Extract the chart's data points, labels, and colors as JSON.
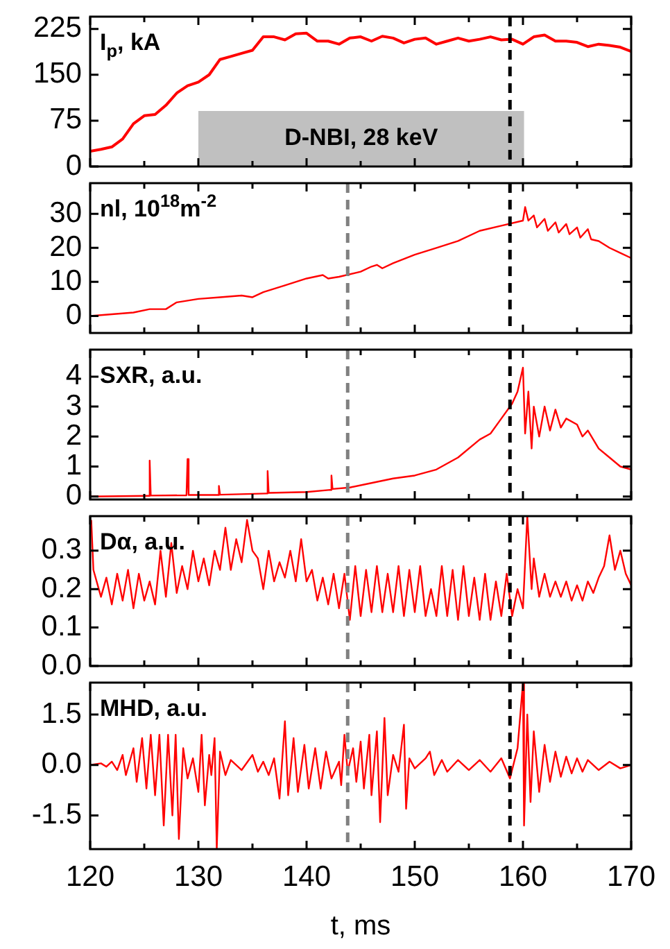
{
  "chart_data": [
    {
      "type": "line",
      "title": "I$_{p}$, kA",
      "xlim": [
        120,
        170
      ],
      "xticks": [
        120,
        {
          "value": 125,
          "label": null
        },
        130,
        {
          "value": 135,
          "label": null
        },
        140,
        {
          "value": 145,
          "label": null
        },
        150,
        {
          "value": 155,
          "label": null
        },
        160,
        {
          "value": 165,
          "label": null
        },
        170
      ],
      "ylim": [
        0,
        245
      ],
      "yticks": [
        0,
        75,
        150,
        225
      ],
      "tick_labels": "y",
      "series": [
        {
          "color": "#ff0000",
          "x": [
            120,
            121,
            122,
            123,
            124,
            125,
            126,
            127,
            128,
            129,
            130,
            131,
            132,
            133,
            134,
            135,
            136,
            137,
            138,
            139,
            140,
            141,
            142,
            143,
            144,
            145,
            146,
            147,
            148,
            149,
            150,
            151,
            152,
            153,
            154,
            155,
            156,
            157,
            158,
            159,
            160,
            161,
            162,
            163,
            164,
            165,
            166,
            167,
            168,
            169,
            170
          ],
          "values": [
            25,
            28,
            32,
            45,
            70,
            83,
            85,
            100,
            120,
            132,
            138,
            150,
            175,
            180,
            185,
            190,
            212,
            212,
            207,
            217,
            218,
            205,
            205,
            200,
            210,
            212,
            205,
            213,
            210,
            202,
            208,
            210,
            200,
            205,
            210,
            205,
            208,
            212,
            207,
            208,
            200,
            212,
            215,
            205,
            205,
            203,
            196,
            200,
            198,
            195,
            188
          ]
        }
      ],
      "ref_lines": [
        {
          "axis": "x",
          "value": 158.8,
          "color": "#000000",
          "line_style": "dashed"
        }
      ],
      "bands": [
        {
          "axis": "x",
          "from": 130,
          "to": 160.1,
          "label": "D-NBI, 28 keV",
          "color": "#c0c0c0"
        }
      ]
    },
    {
      "type": "line",
      "title": "nl, 10$^{18}$m$^{-2}$",
      "xlim": [
        120,
        170
      ],
      "xticks": [
        120,
        {
          "value": 125,
          "label": null
        },
        130,
        {
          "value": 135,
          "label": null
        },
        140,
        {
          "value": 145,
          "label": null
        },
        150,
        {
          "value": 155,
          "label": null
        },
        160,
        {
          "value": 165,
          "label": null
        },
        170
      ],
      "ylim": [
        -5,
        39
      ],
      "yticks": [
        0,
        10,
        20,
        30
      ],
      "tick_labels": "y",
      "series": [
        {
          "color": "#ff0000",
          "x": [
            120,
            122,
            124,
            125.5,
            127,
            128,
            130,
            132,
            134,
            135,
            136,
            138,
            140,
            141.5,
            142,
            143,
            145,
            146,
            146.5,
            147,
            148,
            150,
            152,
            154,
            156,
            158,
            160,
            160.2,
            160.5,
            161,
            161.3,
            162,
            162.3,
            163,
            163.3,
            164,
            164.3,
            165,
            165.3,
            166,
            166.3,
            167,
            168,
            169,
            170
          ],
          "values": [
            0,
            0.5,
            1,
            2,
            2,
            4,
            5,
            5.5,
            6,
            5.5,
            7,
            9,
            11,
            12,
            11,
            11.5,
            13,
            14.5,
            15,
            14,
            15.5,
            18,
            20,
            22,
            25,
            26.5,
            28,
            32,
            28,
            29.5,
            26,
            28.5,
            25,
            27.5,
            24.5,
            27,
            24,
            26,
            23,
            25.5,
            22.5,
            22,
            20,
            18.5,
            17
          ]
        }
      ],
      "ref_lines": [
        {
          "axis": "x",
          "value": 143.8,
          "color": "#808080",
          "line_style": "dashed"
        },
        {
          "axis": "x",
          "value": 158.8,
          "color": "#000000",
          "line_style": "dashed"
        }
      ]
    },
    {
      "type": "line",
      "title": "SXR, a.u.",
      "xlim": [
        120,
        170
      ],
      "xticks": [
        120,
        {
          "value": 125,
          "label": null
        },
        130,
        {
          "value": 135,
          "label": null
        },
        140,
        {
          "value": 145,
          "label": null
        },
        150,
        {
          "value": 155,
          "label": null
        },
        160,
        {
          "value": 165,
          "label": null
        },
        170
      ],
      "ylim": [
        -0.1,
        4.9
      ],
      "yticks": [
        0,
        1,
        2,
        3,
        4
      ],
      "tick_labels": "y",
      "series": [
        {
          "color": "#ff0000",
          "x": [
            120,
            125.4,
            125.5,
            125.6,
            128.9,
            129,
            129.1,
            131.8,
            131.9,
            132,
            136.3,
            136.4,
            136.5,
            140,
            142.2,
            142.3,
            142.4,
            144,
            146,
            148,
            150,
            152,
            154,
            156,
            157,
            158,
            159,
            159.5,
            160,
            160.2,
            160.5,
            160.8,
            161,
            161.5,
            162,
            162.5,
            163,
            163.5,
            164,
            165,
            165.5,
            166,
            167,
            168,
            169,
            170
          ],
          "values": [
            0,
            0.02,
            1.2,
            0.03,
            0.04,
            1.25,
            0.05,
            0.05,
            0.35,
            0.06,
            0.1,
            0.85,
            0.12,
            0.15,
            0.22,
            0.7,
            0.25,
            0.3,
            0.45,
            0.6,
            0.7,
            0.9,
            1.3,
            1.9,
            2.1,
            2.6,
            3.1,
            3.5,
            4.3,
            2.1,
            3.5,
            1.6,
            3,
            2,
            3,
            2.2,
            2.9,
            2.3,
            2.6,
            2.4,
            2,
            2.2,
            1.6,
            1.3,
            1,
            0.9
          ]
        }
      ],
      "ref_lines": [
        {
          "axis": "x",
          "value": 143.8,
          "color": "#808080",
          "line_style": "dashed"
        },
        {
          "axis": "x",
          "value": 158.8,
          "color": "#000000",
          "line_style": "dashed"
        }
      ]
    },
    {
      "type": "line",
      "title": "Dα, a.u.",
      "xlim": [
        120,
        170
      ],
      "xticks": [
        120,
        {
          "value": 125,
          "label": null
        },
        130,
        {
          "value": 135,
          "label": null
        },
        140,
        {
          "value": 145,
          "label": null
        },
        150,
        {
          "value": 155,
          "label": null
        },
        160,
        {
          "value": 165,
          "label": null
        },
        170
      ],
      "ylim": [
        0,
        0.39
      ],
      "yticks": [
        {
          "value": 0,
          "label": "0.0"
        },
        0.1,
        0.2,
        0.3
      ],
      "tick_labels": "y",
      "series": [
        {
          "color": "#ff0000",
          "x": [
            120.1,
            120.3,
            121,
            121.5,
            122,
            122.5,
            123,
            123.5,
            124,
            124.5,
            125,
            125.5,
            126,
            126.5,
            127,
            127.5,
            128,
            128.5,
            129,
            129.5,
            130,
            130.5,
            131,
            131.5,
            132,
            132.5,
            133,
            133.5,
            134,
            134.5,
            135,
            135.5,
            136,
            136.5,
            137,
            137.5,
            138,
            138.5,
            139,
            139.5,
            140,
            140.5,
            141,
            141.5,
            142,
            142.5,
            143,
            143.5,
            144,
            144.5,
            145,
            145.5,
            146,
            146.5,
            147,
            147.5,
            148,
            148.5,
            149,
            149.5,
            150,
            150.5,
            151,
            151.5,
            152,
            152.5,
            153,
            153.5,
            154,
            154.5,
            155,
            155.5,
            156,
            156.5,
            157,
            157.5,
            158,
            158.5,
            159,
            159.5,
            160,
            160.4,
            160.8,
            161,
            161.5,
            162,
            162.5,
            163,
            163.5,
            164,
            164.5,
            165,
            165.5,
            166,
            166.5,
            167,
            167.5,
            168,
            168.5,
            169,
            169.5,
            170
          ],
          "values": [
            0.38,
            0.25,
            0.18,
            0.23,
            0.16,
            0.24,
            0.17,
            0.25,
            0.15,
            0.24,
            0.17,
            0.22,
            0.16,
            0.3,
            0.18,
            0.32,
            0.19,
            0.26,
            0.2,
            0.3,
            0.22,
            0.28,
            0.21,
            0.3,
            0.25,
            0.36,
            0.25,
            0.33,
            0.27,
            0.38,
            0.3,
            0.28,
            0.2,
            0.3,
            0.22,
            0.27,
            0.23,
            0.3,
            0.22,
            0.33,
            0.22,
            0.25,
            0.17,
            0.23,
            0.16,
            0.24,
            0.15,
            0.24,
            0.12,
            0.26,
            0.13,
            0.25,
            0.14,
            0.26,
            0.14,
            0.24,
            0.14,
            0.26,
            0.13,
            0.25,
            0.14,
            0.26,
            0.13,
            0.2,
            0.13,
            0.26,
            0.13,
            0.25,
            0.12,
            0.26,
            0.13,
            0.23,
            0.12,
            0.24,
            0.12,
            0.22,
            0.13,
            0.24,
            0.13,
            0.2,
            0.15,
            0.39,
            0.2,
            0.28,
            0.18,
            0.24,
            0.18,
            0.22,
            0.18,
            0.22,
            0.17,
            0.21,
            0.17,
            0.22,
            0.19,
            0.23,
            0.26,
            0.34,
            0.25,
            0.3,
            0.24,
            0.21
          ]
        }
      ],
      "ref_lines": [
        {
          "axis": "x",
          "value": 143.8,
          "color": "#808080",
          "line_style": "dashed"
        },
        {
          "axis": "x",
          "value": 158.8,
          "color": "#000000",
          "line_style": "dashed"
        }
      ]
    },
    {
      "type": "line",
      "title": "MHD, a.u.",
      "xlabel": "t, ms",
      "xlim": [
        120,
        170
      ],
      "xticks": [
        120,
        {
          "value": 125,
          "label": null
        },
        130,
        {
          "value": 135,
          "label": null
        },
        140,
        {
          "value": 145,
          "label": null
        },
        150,
        {
          "value": 155,
          "label": null
        },
        160,
        {
          "value": 165,
          "label": null
        },
        170
      ],
      "ylim": [
        -2.5,
        2.45
      ],
      "yticks": [
        -1.5,
        {
          "value": 0,
          "label": "0.0"
        },
        1.5
      ],
      "series": [
        {
          "color": "#ff0000",
          "x": [
            120,
            121,
            121.5,
            122,
            122.5,
            123,
            123.3,
            124,
            124.3,
            124.8,
            125.2,
            125.6,
            126,
            126.4,
            126.8,
            127.2,
            127.6,
            127.9,
            128.2,
            128.6,
            129,
            129.5,
            130,
            130.3,
            130.6,
            131,
            131.2,
            131.5,
            131.7,
            132,
            132.5,
            133,
            134,
            135,
            135.5,
            136,
            136.5,
            137,
            137.5,
            138,
            138.3,
            138.8,
            139.2,
            139.8,
            140.2,
            140.8,
            141.3,
            141.8,
            142.3,
            143,
            143.2,
            143.5,
            143.8,
            144.3,
            144.6,
            145,
            145.3,
            145.8,
            146,
            146.5,
            146.8,
            147.2,
            147.5,
            148,
            148.5,
            149,
            149.2,
            149.5,
            150,
            151,
            151.4,
            151.8,
            152.5,
            153,
            154,
            155,
            156,
            157,
            158,
            158.8,
            159.5,
            160,
            160.1,
            160.4,
            160.7,
            161,
            161.5,
            162,
            162.5,
            163,
            163.5,
            164,
            164.5,
            165,
            165.5,
            166,
            167,
            168,
            169,
            170
          ],
          "values": [
            0,
            0.05,
            -0.05,
            0.1,
            -0.15,
            0.3,
            -0.3,
            0.5,
            -0.5,
            0.8,
            -0.7,
            0.9,
            -0.9,
            0.9,
            -1.8,
            0.9,
            -1.5,
            0.9,
            -2.2,
            0.5,
            -0.4,
            0.2,
            -0.8,
            0.9,
            -1.2,
            0.3,
            -0.3,
            0.8,
            -2.5,
            0.4,
            -0.3,
            0.15,
            -0.15,
            0.3,
            -0.2,
            0.1,
            -0.3,
            0.2,
            -1,
            1.3,
            -0.9,
            0.8,
            -0.8,
            0.6,
            -0.7,
            0.5,
            -0.7,
            0.4,
            -0.4,
            0.1,
            -0.6,
            0.9,
            -0.2,
            0.5,
            -0.5,
            0.7,
            -0.7,
            0.9,
            -0.9,
            1,
            -1.7,
            1.4,
            -0.9,
            0.3,
            -0.2,
            1.2,
            -1.3,
            0.2,
            -0.1,
            0.2,
            0.4,
            -0.3,
            0.15,
            -0.2,
            0.15,
            -0.15,
            0.15,
            -0.2,
            0.2,
            -0.4,
            0.5,
            2.45,
            -1.8,
            1.5,
            -1.1,
            1,
            -0.8,
            0.6,
            -0.5,
            0.4,
            -0.35,
            0.25,
            -0.25,
            0.2,
            -0.2,
            0.15,
            -0.15,
            0.1,
            -0.1,
            0
          ]
        }
      ],
      "ref_lines": [
        {
          "axis": "x",
          "value": 143.8,
          "color": "#808080",
          "line_style": "dashed"
        },
        {
          "axis": "x",
          "value": 158.8,
          "color": "#000000",
          "line_style": "dashed"
        }
      ]
    }
  ]
}
